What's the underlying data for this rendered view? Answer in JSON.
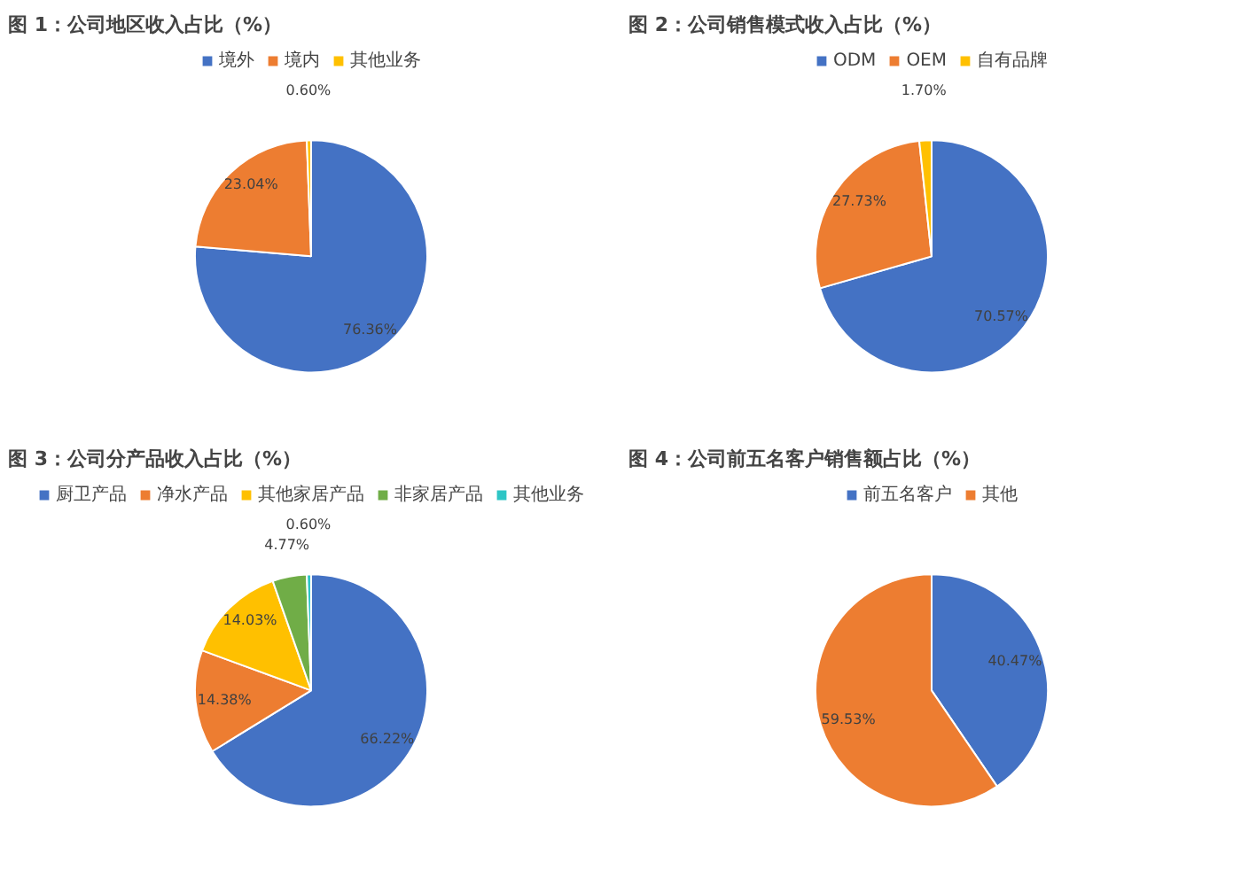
{
  "chart_data": [
    {
      "type": "pie",
      "title": "图 1：公司地区收入占比（%）",
      "categories": [
        "境外",
        "境内",
        "其他业务"
      ],
      "values": [
        76.36,
        23.04,
        0.6
      ],
      "colors": [
        "#4472c4",
        "#ed7d31",
        "#ffc000"
      ],
      "value_labels": [
        "76.36%",
        "23.04%",
        "0.60%"
      ],
      "legend": "top"
    },
    {
      "type": "pie",
      "title": "图 2：公司销售模式收入占比（%）",
      "categories": [
        "ODM",
        "OEM",
        "自有品牌"
      ],
      "values": [
        70.57,
        27.73,
        1.7
      ],
      "colors": [
        "#4472c4",
        "#ed7d31",
        "#ffc000"
      ],
      "value_labels": [
        "70.57%",
        "27.73%",
        "1.70%"
      ],
      "legend": "top"
    },
    {
      "type": "pie",
      "title": "图 3：公司分产品收入占比（%）",
      "categories": [
        "厨卫产品",
        "净水产品",
        "其他家居产品",
        "非家居产品",
        "其他业务"
      ],
      "values": [
        66.22,
        14.38,
        14.03,
        4.77,
        0.6
      ],
      "colors": [
        "#4472c4",
        "#ed7d31",
        "#ffc000",
        "#70ad47",
        "#2ec5c5"
      ],
      "value_labels": [
        "66.22%",
        "14.38%",
        "14.03%",
        "4.77%",
        "0.60%"
      ],
      "legend": "top"
    },
    {
      "type": "pie",
      "title": "图 4：公司前五名客户销售额占比（%）",
      "categories": [
        "前五名客户",
        "其他"
      ],
      "values": [
        40.47,
        59.53
      ],
      "colors": [
        "#4472c4",
        "#ed7d31"
      ],
      "value_labels": [
        "40.47%",
        "59.53%"
      ],
      "legend": "top"
    }
  ]
}
